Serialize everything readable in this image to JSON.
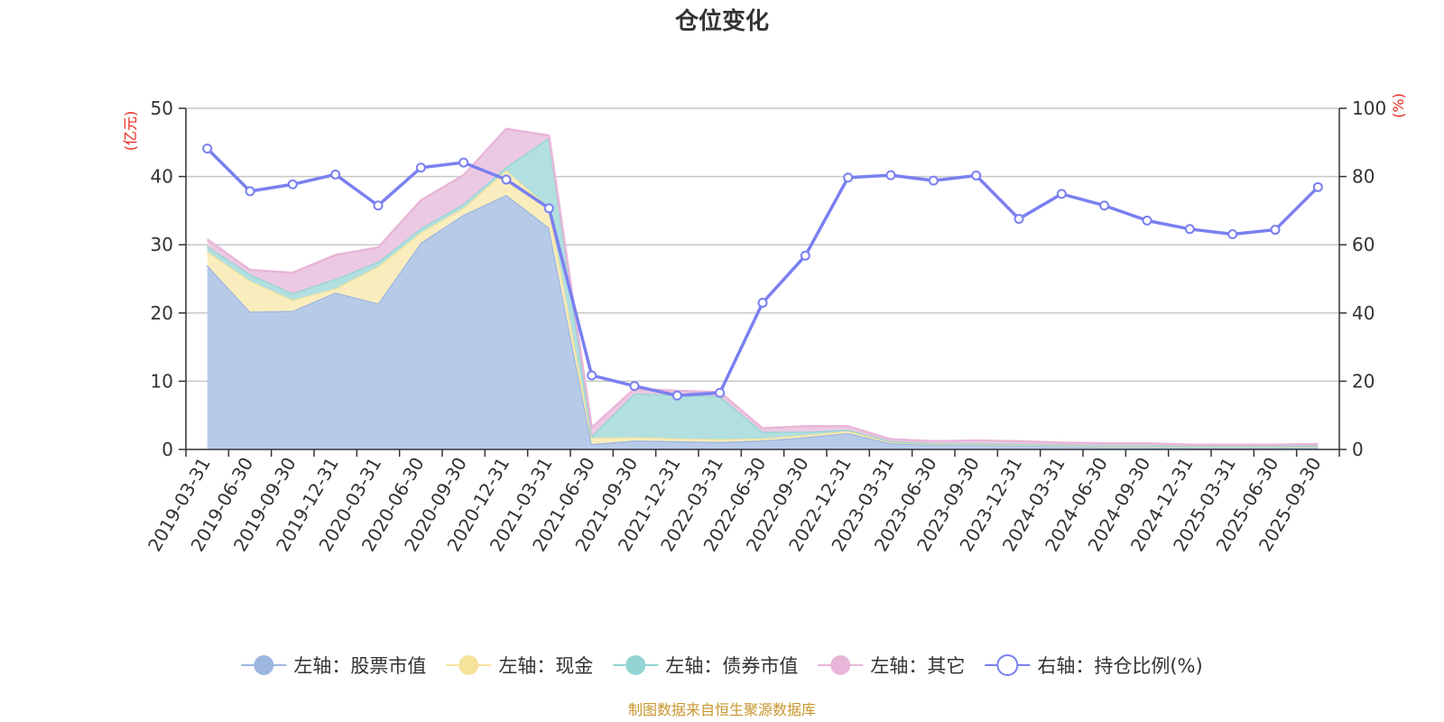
{
  "chart_data": {
    "type": "area",
    "title": "仓位变化",
    "left_unit": "(亿元)",
    "right_unit": "(%)",
    "source_note": "制图数据来自恒生聚源数据库",
    "left_axis": {
      "min": 0,
      "max": 50,
      "ticks": [
        0,
        10,
        20,
        30,
        40,
        50
      ]
    },
    "right_axis": {
      "min": 0,
      "max": 100,
      "ticks": [
        0,
        20,
        40,
        60,
        80,
        100
      ]
    },
    "categories": [
      "2019-03-31",
      "2019-06-30",
      "2019-09-30",
      "2019-12-31",
      "2020-03-31",
      "2020-06-30",
      "2020-09-30",
      "2020-12-31",
      "2021-03-31",
      "2021-06-30",
      "2021-09-30",
      "2021-12-31",
      "2022-03-31",
      "2022-06-30",
      "2022-09-30",
      "2022-12-31",
      "2023-03-31",
      "2023-06-30",
      "2023-09-30",
      "2023-12-31",
      "2024-03-31",
      "2024-06-30",
      "2024-09-30",
      "2024-12-31",
      "2025-03-31",
      "2025-06-30",
      "2025-09-30"
    ],
    "stacked_series": [
      {
        "name": "左轴：股票市值",
        "color": "#9db6e0",
        "fill": "#b7cbe9",
        "values": [
          27.0,
          20.2,
          20.3,
          23.0,
          21.4,
          30.3,
          34.4,
          37.3,
          32.5,
          0.8,
          1.3,
          1.2,
          1.1,
          1.3,
          1.8,
          2.4,
          0.9,
          0.7,
          0.7,
          0.6,
          0.5,
          0.4,
          0.4,
          0.3,
          0.3,
          0.3,
          0.4
        ]
      },
      {
        "name": "左轴：现金",
        "color": "#f5e39c",
        "fill": "#faedbd",
        "values": [
          2.0,
          4.5,
          1.6,
          0.6,
          5.4,
          1.5,
          1.0,
          3.6,
          3.0,
          0.9,
          0.5,
          0.4,
          0.4,
          0.3,
          0.3,
          0.3,
          0.2,
          0.1,
          0.1,
          0.1,
          0.1,
          0.1,
          0.1,
          0.1,
          0.1,
          0.1,
          0.1
        ]
      },
      {
        "name": "左轴：债券市值",
        "color": "#93d4d4",
        "fill": "#b2dfdf",
        "values": [
          0.8,
          1.0,
          1.0,
          1.4,
          0.7,
          0.6,
          0.6,
          0.5,
          10.2,
          0.3,
          6.4,
          6.4,
          6.3,
          1.0,
          0.5,
          0.2,
          0.1,
          0.1,
          0.1,
          0.1,
          0.1,
          0.1,
          0.1,
          0.1,
          0.1,
          0.1,
          0.1
        ]
      },
      {
        "name": "左轴：其它",
        "color": "#e8b6d8",
        "fill": "#ecc9e2",
        "values": [
          1.0,
          0.6,
          3.0,
          3.5,
          2.1,
          4.1,
          4.2,
          5.6,
          0.3,
          1.2,
          0.7,
          0.6,
          0.6,
          0.5,
          0.8,
          0.5,
          0.3,
          0.3,
          0.4,
          0.4,
          0.3,
          0.3,
          0.3,
          0.2,
          0.2,
          0.2,
          0.2
        ]
      }
    ],
    "line_series": {
      "name": "右轴：持仓比例(%)",
      "color": "#7a80f0",
      "axis": "right",
      "values": [
        88.2,
        75.7,
        77.7,
        80.6,
        71.5,
        82.6,
        84.1,
        79.1,
        70.7,
        21.7,
        18.6,
        15.8,
        16.6,
        43.0,
        56.8,
        79.7,
        80.4,
        78.8,
        80.3,
        67.6,
        74.9,
        71.5,
        67.1,
        64.6,
        63.1,
        64.4,
        76.9
      ]
    },
    "legend_position": "bottom",
    "grid": true
  }
}
